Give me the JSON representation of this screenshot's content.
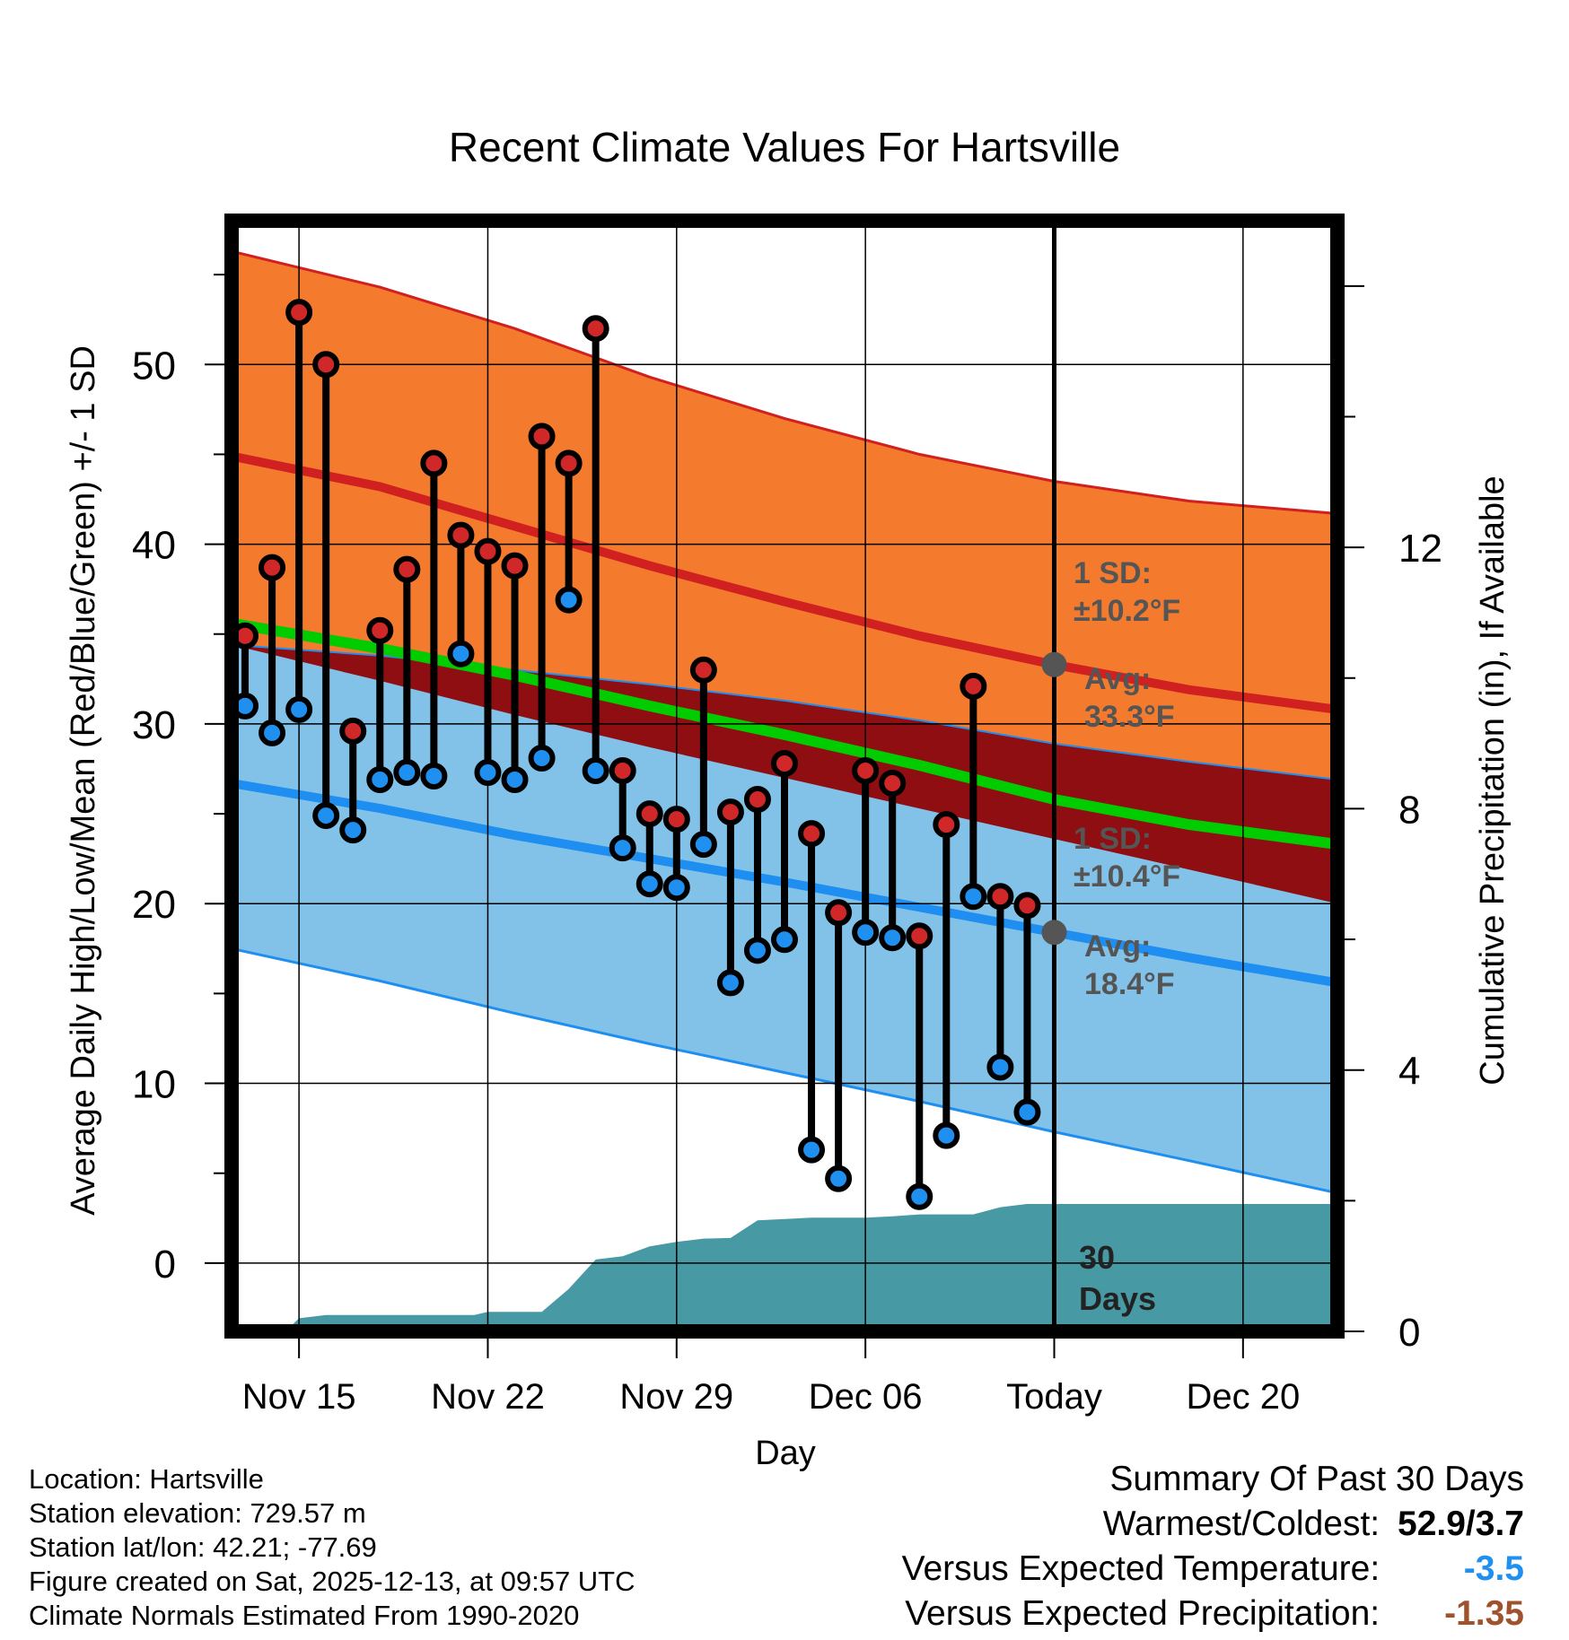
{
  "chart_data": {
    "type": "line",
    "title": "Recent Climate Values For Hartsville",
    "xlabel": "Day",
    "ylabel": "Average Daily High/Low/Mean (Red/Blue/Green) +/- 1 SD",
    "y2label": "Cumulative Precipitation (in), If Available",
    "xlim": [
      -0.5,
      40.5
    ],
    "ylim": [
      -3.8,
      58
    ],
    "y2lim": [
      0,
      17
    ],
    "x_ticks": [
      {
        "x": 2,
        "label": "Nov 15"
      },
      {
        "x": 9,
        "label": "Nov 22"
      },
      {
        "x": 16,
        "label": "Nov 29"
      },
      {
        "x": 23,
        "label": "Dec 06"
      },
      {
        "x": 30,
        "label": "Today"
      },
      {
        "x": 37,
        "label": "Dec 20"
      }
    ],
    "y_ticks": [
      0,
      10,
      20,
      30,
      40,
      50
    ],
    "y2_ticks": [
      0,
      4,
      8,
      12
    ],
    "normal_high_band": {
      "x": [
        -0.5,
        5,
        10,
        15,
        20,
        25,
        30,
        35,
        40.5
      ],
      "upper": [
        56.3,
        54.3,
        52.0,
        49.3,
        47.0,
        45.0,
        43.5,
        42.4,
        41.7
      ],
      "mean": [
        44.9,
        43.2,
        41.0,
        38.8,
        36.8,
        34.9,
        33.3,
        31.9,
        30.8
      ],
      "lower": [
        34.4,
        32.4,
        30.5,
        28.7,
        27.0,
        25.3,
        23.6,
        21.9,
        20.0
      ]
    },
    "normal_low_band": {
      "x": [
        -0.5,
        5,
        10,
        15,
        20,
        25,
        30,
        35,
        40.5
      ],
      "upper": [
        34.4,
        33.8,
        33.0,
        32.2,
        31.3,
        30.2,
        28.9,
        27.9,
        26.9
      ],
      "mean": [
        26.7,
        25.3,
        23.8,
        22.5,
        21.2,
        19.8,
        18.4,
        17.0,
        15.6
      ],
      "lower": [
        17.5,
        15.7,
        13.9,
        12.2,
        10.6,
        9.0,
        7.3,
        5.7,
        3.9
      ]
    },
    "normal_mean_line": {
      "x": [
        -0.5,
        5,
        10,
        15,
        20,
        25,
        30,
        35,
        40.5
      ],
      "values": [
        35.6,
        34.2,
        32.7,
        31.0,
        29.4,
        27.7,
        25.8,
        24.4,
        23.3
      ]
    },
    "daily_temperatures": {
      "x": [
        0,
        1,
        2,
        3,
        4,
        5,
        6,
        7,
        8,
        9,
        10,
        11,
        12,
        13,
        14,
        15,
        16,
        17,
        18,
        19,
        20,
        21,
        22,
        23,
        24,
        25,
        26,
        27,
        28,
        29
      ],
      "high": [
        34.9,
        38.7,
        52.9,
        50.0,
        29.6,
        35.2,
        38.6,
        44.5,
        40.5,
        39.6,
        38.8,
        46.0,
        44.5,
        52.0,
        27.4,
        25.0,
        24.7,
        33.0,
        25.1,
        25.8,
        27.8,
        23.9,
        19.5,
        27.4,
        26.7,
        18.2,
        24.4,
        32.1,
        20.4,
        19.9
      ],
      "low": [
        31.0,
        29.5,
        30.8,
        24.9,
        24.1,
        26.9,
        27.3,
        27.1,
        33.9,
        27.3,
        26.9,
        28.1,
        36.9,
        27.4,
        23.1,
        21.1,
        20.9,
        23.3,
        15.6,
        17.4,
        18.0,
        6.3,
        4.7,
        18.4,
        18.1,
        3.7,
        7.1,
        20.4,
        10.9,
        8.4
      ]
    },
    "cumulative_precipitation": {
      "x": [
        -0.5,
        1.5,
        2.0,
        3.0,
        6.0,
        8.5,
        9.0,
        10.0,
        11.0,
        12.0,
        13.0,
        14.0,
        15.0,
        16.0,
        17.0,
        18.0,
        19.0,
        20.0,
        21.0,
        22.0,
        23.0,
        24.0,
        25.0,
        26.0,
        27.0,
        28.0,
        29.0,
        30.0,
        40.5
      ],
      "values": [
        0,
        0,
        0.2,
        0.25,
        0.25,
        0.25,
        0.3,
        0.3,
        0.3,
        0.65,
        1.1,
        1.15,
        1.3,
        1.37,
        1.42,
        1.43,
        1.7,
        1.72,
        1.74,
        1.74,
        1.74,
        1.76,
        1.79,
        1.79,
        1.79,
        1.9,
        1.95,
        1.95,
        1.95
      ]
    },
    "annotations": {
      "high_sd_label": "1 SD:",
      "high_sd_value": "±10.2°F",
      "high_avg_label": "Avg:",
      "high_avg_value": "33.3°F",
      "high_avg": 33.3,
      "low_sd_label": "1 SD:",
      "low_sd_value": "±10.4°F",
      "low_avg_label": "Avg:",
      "low_avg_value": "18.4°F",
      "low_avg": 18.4,
      "precip_label_line1": "30",
      "precip_label_line2": "Days"
    },
    "colors": {
      "high_band": "#f47a2e",
      "high_line": "#d02020",
      "low_band": "#82c2e8",
      "low_line": "#1e8ff0",
      "overlap": "#8e0e12",
      "mean": "#00cc00",
      "precip": "#479aa3",
      "high_marker": "#d02828",
      "low_marker": "#2090f0",
      "annotation": "#555555"
    }
  },
  "info": {
    "location": "Location: Hartsville",
    "elevation": "Station elevation: 729.57 m",
    "latlon": "Station lat/lon: 42.21; -77.69",
    "created": "Figure created on Sat, 2025-12-13, at 09:57 UTC",
    "normals": "Climate Normals Estimated From 1990-2020"
  },
  "summary": {
    "title": "Summary Of Past 30 Days",
    "warm_cold_label": "Warmest/Coldest:",
    "warm_cold_value": "52.9/3.7",
    "temp_label": "Versus Expected Temperature:",
    "temp_value": "-3.5",
    "temp_color": "#2090f0",
    "precip_label": "Versus Expected Precipitation:",
    "precip_value": "-1.35",
    "precip_color": "#a0522d"
  }
}
